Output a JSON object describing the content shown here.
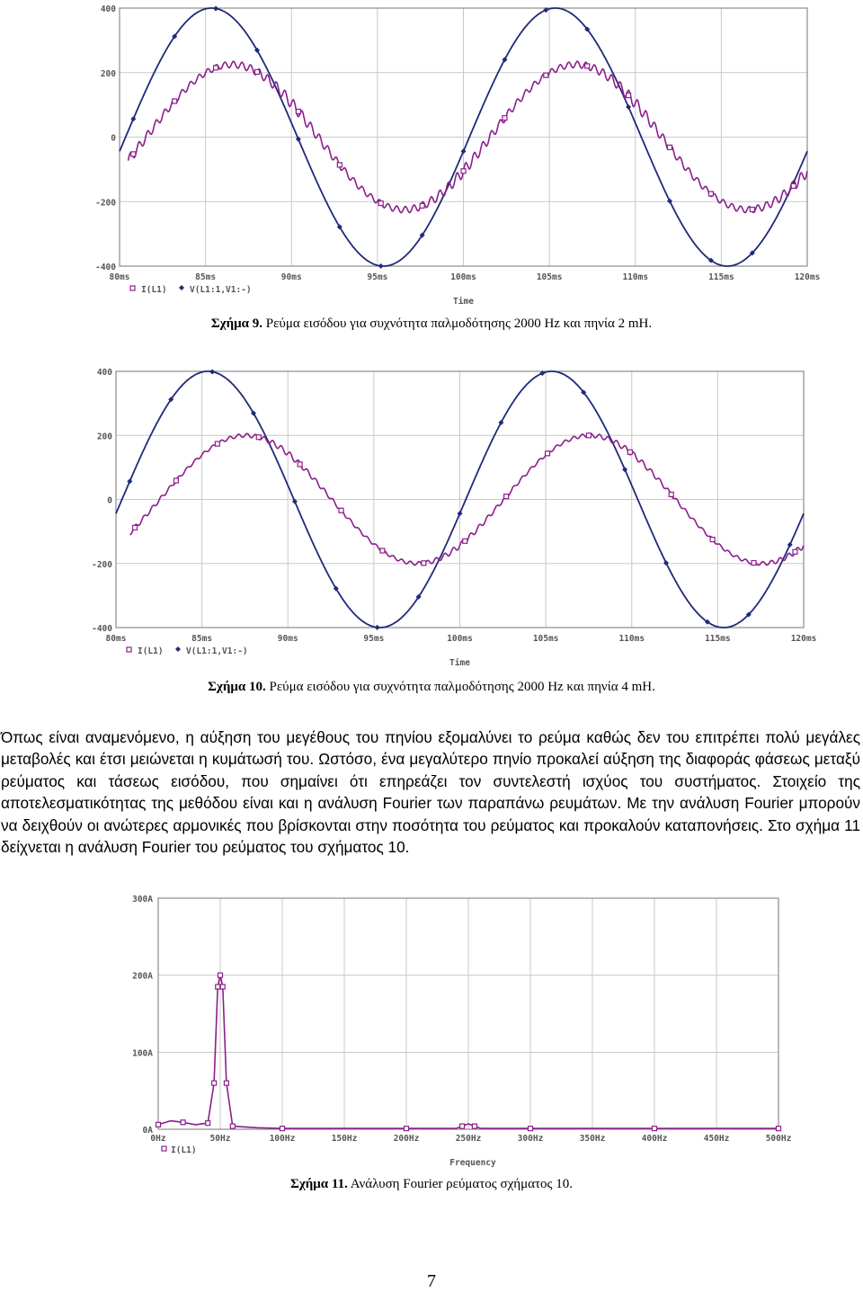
{
  "figure9": {
    "caption_label": "Σχήμα 9.",
    "caption_text": "Ρεύμα εισόδου για συχνότητα παλμοδότησης 2000 Hz και πηνία 2 mH."
  },
  "figure10": {
    "caption_label": "Σχήμα 10.",
    "caption_text": "Ρεύμα εισόδου για συχνότητα παλμοδότησης 2000 Hz και πηνία 4 mH."
  },
  "figure11": {
    "caption_label": "Σχήμα 11.",
    "caption_text": "Ανάλυση Fourier ρεύματος σχήματος 10."
  },
  "paragraph": "Όπως είναι αναμενόμενο, η αύξηση του μεγέθους του πηνίου εξομαλύνει το ρεύμα καθώς δεν του επιτρέπει πολύ μεγάλες μεταβολές και έτσι μειώνεται η κυμάτωσή του. Ωστόσο, ένα μεγαλύτερο πηνίο προκαλεί αύξηση της διαφοράς φάσεως μεταξύ ρεύματος και τάσεως εισόδου, που σημαίνει ότι επηρεάζει τον συντελεστή ισχύος του συστήματος. Στοιχείο της αποτελεσματικότητας της μεθόδου είναι και η ανάλυση Fourier των παραπάνω ρευμάτων. Με την ανάλυση Fourier μπορούν να δειχθούν οι ανώτερες αρμονικές που βρίσκονται στην ποσότητα του ρεύματος και προκαλούν καταπονήσεις. Στο σχήμα 11 δείχνεται η ανάλυση Fourier του ρεύματος του σχήματος 10.",
  "page_number": "7",
  "colors": {
    "voltage": "#1f2a7a",
    "current": "#8b1f8b",
    "grid": "#c8c8c8",
    "frame": "#8c8c8c"
  },
  "chart_data": [
    {
      "type": "line",
      "id": "fig9",
      "xlabel": "Time",
      "x_ticks": [
        "80ms",
        "85ms",
        "90ms",
        "95ms",
        "100ms",
        "105ms",
        "110ms",
        "115ms",
        "120ms"
      ],
      "y_ticks": [
        "400",
        "200",
        "0",
        "-200",
        "-400"
      ],
      "xlim": [
        80,
        120
      ],
      "ylim": [
        -400,
        400
      ],
      "legend": [
        "I(L1)",
        "V(L1:1,V1:-)"
      ],
      "series": [
        {
          "name": "V(L1:1,V1:-)",
          "amplitude": 400,
          "phase_offset_ms": 0,
          "frequency_hz": 50,
          "x_start": 80,
          "x_end": 120
        },
        {
          "name": "I(L1)",
          "amplitude": 225,
          "phase_lag_ms": 1.2,
          "frequency_hz": 50,
          "ripple": 18,
          "x_start": 80.5,
          "x_end": 120
        }
      ]
    },
    {
      "type": "line",
      "id": "fig10",
      "xlabel": "Time",
      "x_ticks": [
        "80ms",
        "85ms",
        "90ms",
        "95ms",
        "100ms",
        "105ms",
        "110ms",
        "115ms",
        "120ms"
      ],
      "y_ticks": [
        "400",
        "200",
        "0",
        "-200",
        "-400"
      ],
      "xlim": [
        80,
        120
      ],
      "ylim": [
        -400,
        400
      ],
      "legend": [
        "I(L1)",
        "V(L1:1,V1:-)"
      ],
      "series": [
        {
          "name": "V(L1:1,V1:-)",
          "amplitude": 400,
          "phase_offset_ms": 0,
          "frequency_hz": 50,
          "x_start": 80,
          "x_end": 120
        },
        {
          "name": "I(L1)",
          "amplitude": 200,
          "phase_lag_ms": 2.2,
          "frequency_hz": 50,
          "ripple": 9,
          "x_start": 80.8,
          "x_end": 120
        }
      ]
    },
    {
      "type": "line",
      "id": "fig11",
      "xlabel": "Frequency",
      "x_ticks": [
        "0Hz",
        "50Hz",
        "100Hz",
        "150Hz",
        "200Hz",
        "250Hz",
        "300Hz",
        "350Hz",
        "400Hz",
        "450Hz",
        "500Hz"
      ],
      "y_ticks": [
        "300A",
        "200A",
        "100A",
        "0A"
      ],
      "xlim": [
        0,
        500
      ],
      "ylim": [
        0,
        300
      ],
      "legend": [
        "I(L1)"
      ],
      "series": [
        {
          "name": "I(L1)",
          "x": [
            0,
            10,
            20,
            30,
            40,
            45,
            48,
            50,
            52,
            55,
            60,
            80,
            100,
            150,
            200,
            240,
            245,
            250,
            255,
            260,
            300,
            350,
            400,
            450,
            500
          ],
          "y": [
            6,
            11,
            9,
            6,
            8,
            60,
            185,
            200,
            185,
            60,
            4,
            2,
            1,
            1,
            1,
            1,
            4,
            7,
            4,
            1,
            1,
            1,
            1,
            1,
            1
          ]
        }
      ]
    }
  ]
}
